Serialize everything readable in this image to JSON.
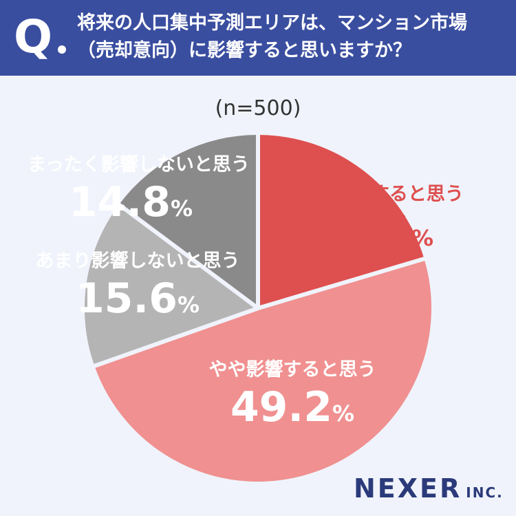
{
  "header": {
    "q": "Q",
    "line1": "将来の人口集中予測エリアは、マンション市場",
    "line2": "（売却意向）に影響すると思いますか？"
  },
  "sample": "(n=500)",
  "logo": {
    "main": "NEXER",
    "sub": "INC."
  },
  "chart_data": {
    "type": "pie",
    "unit": "%",
    "slices": [
      {
        "label": "とても影響すると思う",
        "value": 20.4,
        "color": "#de4f4f",
        "text_color": "#de4f4f"
      },
      {
        "label": "やや影響すると思う",
        "value": 49.2,
        "color": "#f09090",
        "text_color": "#ffffff"
      },
      {
        "label": "あまり影響しないと思う",
        "value": 15.6,
        "color": "#b4b4b4",
        "text_color": "#ffffff"
      },
      {
        "label": "まったく影響しないと思う",
        "value": 14.8,
        "color": "#8a8a8a",
        "text_color": "#ffffff"
      }
    ]
  }
}
